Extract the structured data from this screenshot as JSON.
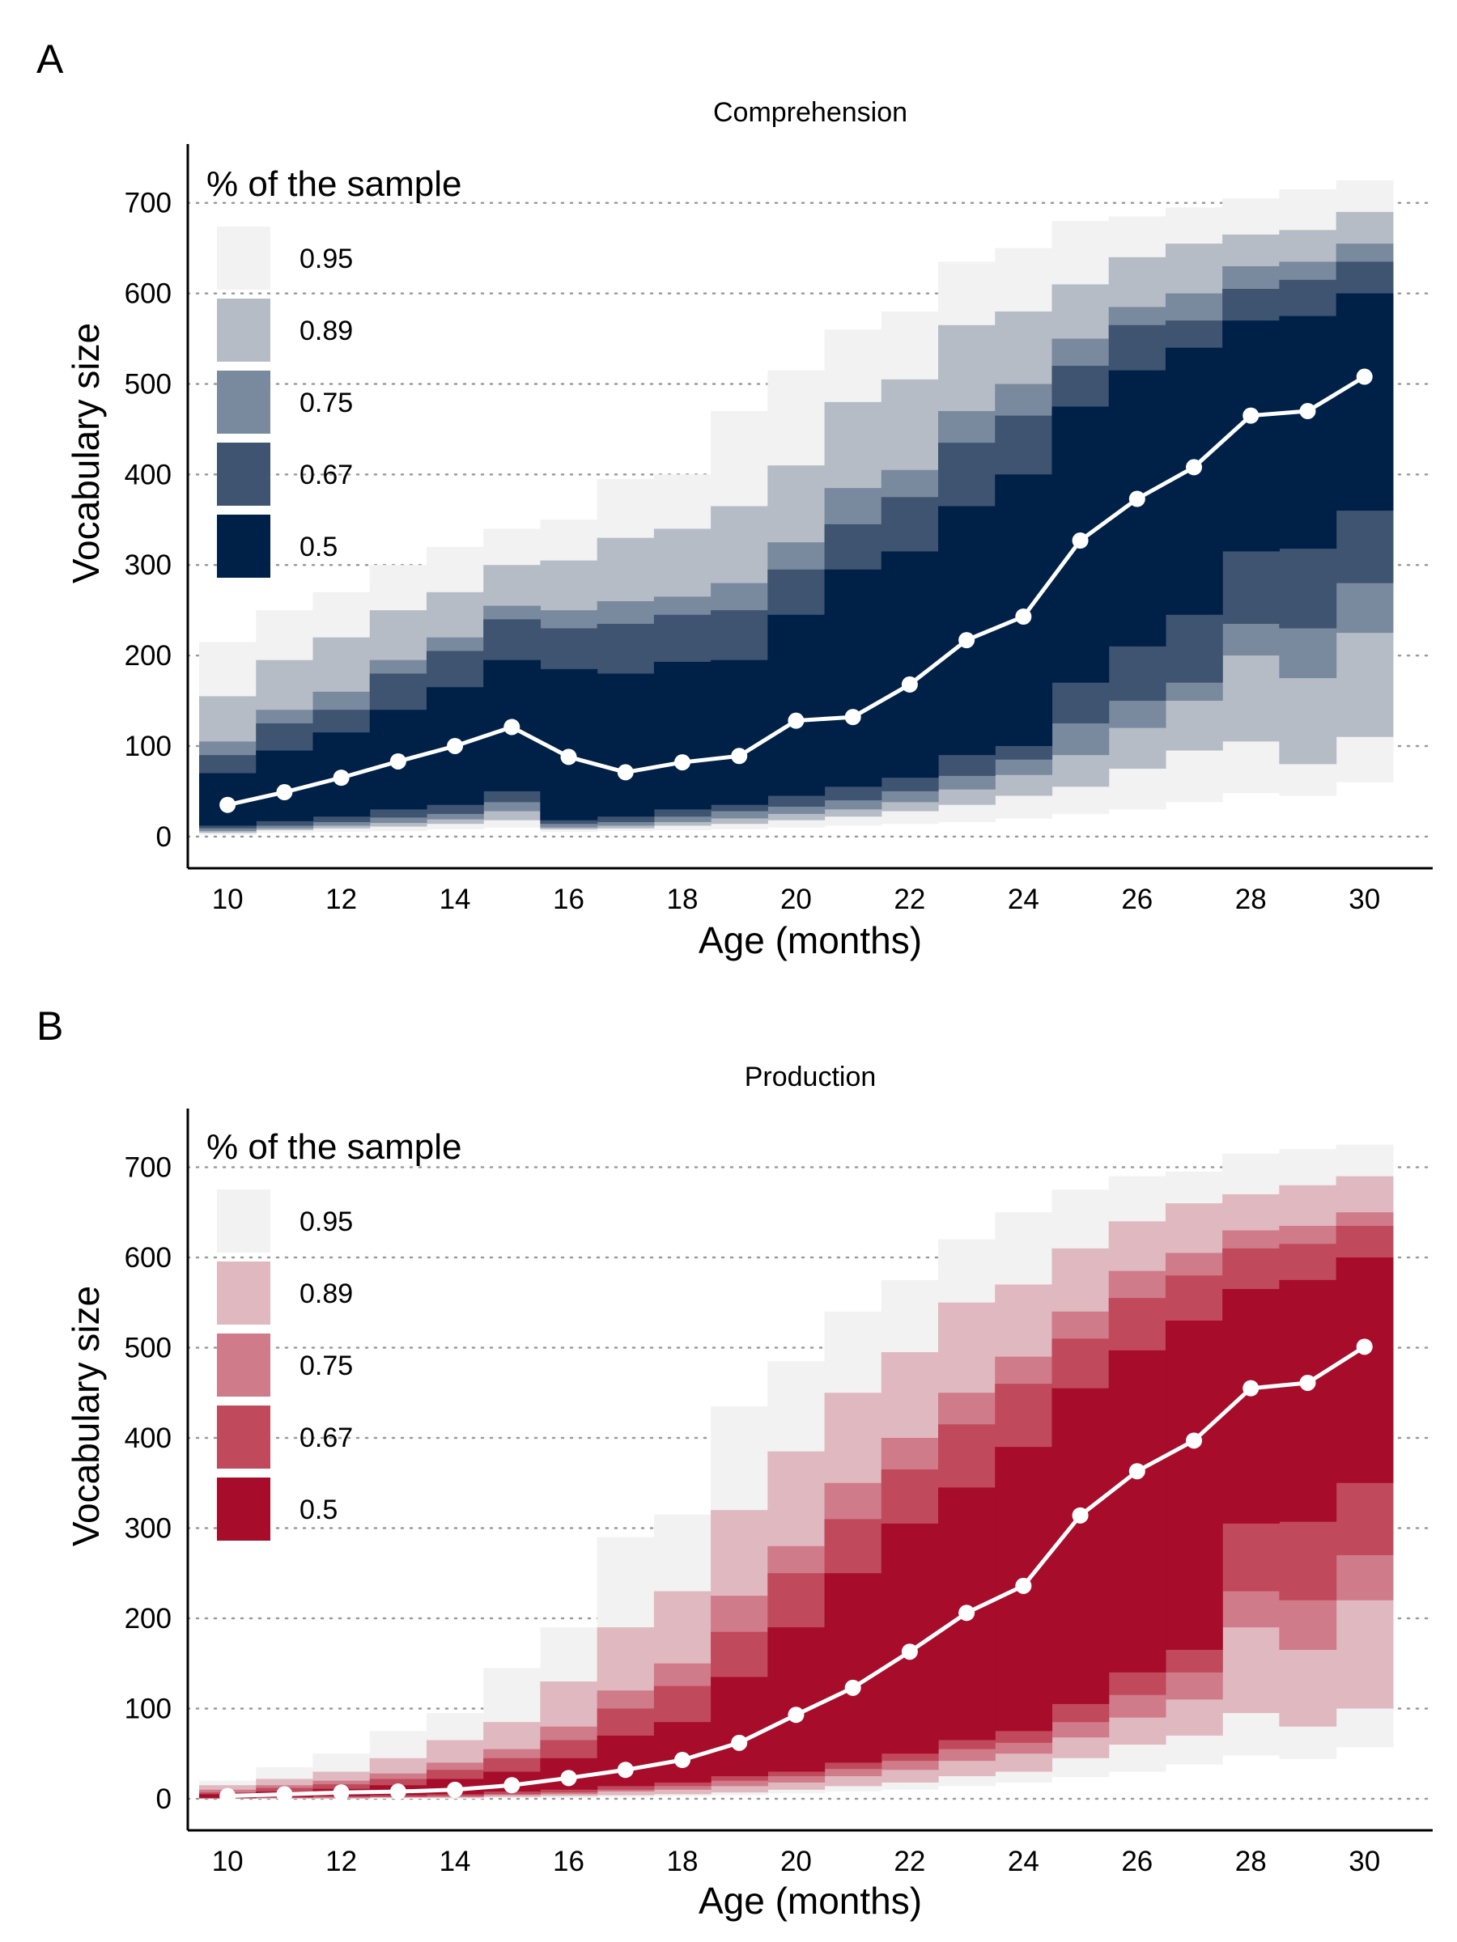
{
  "figure": {
    "panels": [
      "A",
      "B"
    ]
  },
  "chart_data": [
    {
      "panel": "A",
      "type": "area",
      "title": "Comprehension",
      "xlabel": "Age (months)",
      "ylabel": "Vocabulary size",
      "xlim": [
        9.3,
        31.2
      ],
      "ylim": [
        -35,
        765
      ],
      "x_ticks": [
        10,
        12,
        14,
        16,
        18,
        20,
        22,
        24,
        26,
        28,
        30
      ],
      "y_ticks": [
        0,
        100,
        200,
        300,
        400,
        500,
        600,
        700
      ],
      "grid": "horizontal dotted",
      "legend": {
        "title": "% of the sample",
        "position": "top-left",
        "entries": [
          {
            "label": "0.95",
            "color": "#f2f2f2"
          },
          {
            "label": "0.89",
            "color": "#b6bcc6"
          },
          {
            "label": "0.75",
            "color": "#7a8a9e"
          },
          {
            "label": "0.67",
            "color": "#3e5470"
          },
          {
            "label": "0.5",
            "color": "#002147"
          }
        ]
      },
      "x": [
        10,
        11,
        12,
        13,
        14,
        15,
        16,
        17,
        18,
        19,
        20,
        21,
        22,
        23,
        24,
        25,
        26,
        27,
        28,
        29,
        30
      ],
      "median": [
        35,
        49,
        65,
        83,
        100,
        121,
        88,
        71,
        82,
        89,
        128,
        132,
        168,
        217,
        243,
        327,
        373,
        408,
        465,
        470,
        508
      ],
      "intervals": [
        {
          "level": "0.95",
          "lower": [
            2,
            4,
            5,
            6,
            8,
            10,
            5,
            6,
            7,
            8,
            10,
            12,
            14,
            16,
            20,
            25,
            30,
            38,
            48,
            45,
            60
          ],
          "upper": [
            215,
            250,
            270,
            300,
            320,
            340,
            350,
            395,
            400,
            470,
            515,
            560,
            580,
            635,
            650,
            680,
            685,
            695,
            705,
            715,
            725
          ]
        },
        {
          "level": "0.89",
          "lower": [
            4,
            7,
            9,
            11,
            14,
            18,
            8,
            9,
            12,
            14,
            18,
            22,
            28,
            35,
            45,
            55,
            75,
            95,
            105,
            80,
            110
          ]
        },
        {
          "level": "0.89",
          "upper": [
            155,
            195,
            220,
            250,
            270,
            300,
            305,
            330,
            340,
            365,
            410,
            480,
            505,
            565,
            580,
            610,
            640,
            655,
            665,
            670,
            690
          ]
        },
        {
          "level": "0.75",
          "lower": [
            6,
            9,
            12,
            15,
            19,
            28,
            10,
            12,
            16,
            20,
            25,
            30,
            38,
            52,
            68,
            90,
            120,
            150,
            200,
            175,
            225
          ]
        },
        {
          "level": "0.75",
          "upper": [
            105,
            140,
            160,
            195,
            220,
            255,
            250,
            260,
            265,
            280,
            325,
            385,
            405,
            470,
            500,
            550,
            585,
            600,
            630,
            635,
            655
          ]
        },
        {
          "level": "0.67",
          "lower": [
            9,
            12,
            16,
            21,
            25,
            38,
            14,
            16,
            22,
            28,
            33,
            40,
            50,
            67,
            85,
            125,
            150,
            170,
            235,
            230,
            280
          ]
        },
        {
          "level": "0.67",
          "upper": [
            90,
            125,
            140,
            180,
            205,
            240,
            230,
            235,
            245,
            250,
            295,
            345,
            375,
            435,
            465,
            520,
            565,
            570,
            605,
            615,
            635
          ]
        },
        {
          "level": "0.5",
          "lower": [
            12,
            17,
            22,
            30,
            35,
            50,
            18,
            22,
            30,
            35,
            45,
            55,
            65,
            90,
            100,
            170,
            210,
            245,
            315,
            318,
            360
          ],
          "upper": [
            70,
            95,
            115,
            140,
            165,
            195,
            185,
            180,
            193,
            195,
            245,
            295,
            315,
            365,
            400,
            475,
            515,
            540,
            570,
            575,
            600
          ]
        }
      ]
    },
    {
      "panel": "B",
      "type": "area",
      "title": "Production",
      "xlabel": "Age (months)",
      "ylabel": "Vocabulary size",
      "xlim": [
        9.3,
        31.2
      ],
      "ylim": [
        -35,
        765
      ],
      "x_ticks": [
        10,
        12,
        14,
        16,
        18,
        20,
        22,
        24,
        26,
        28,
        30
      ],
      "y_ticks": [
        0,
        100,
        200,
        300,
        400,
        500,
        600,
        700
      ],
      "grid": "horizontal dotted",
      "legend": {
        "title": "% of the sample",
        "position": "top-left",
        "entries": [
          {
            "label": "0.95",
            "color": "#f2f2f2"
          },
          {
            "label": "0.89",
            "color": "#e0b8c0"
          },
          {
            "label": "0.75",
            "color": "#d07b8a"
          },
          {
            "label": "0.67",
            "color": "#c04a5c"
          },
          {
            "label": "0.5",
            "color": "#a70d2a"
          }
        ]
      },
      "x": [
        10,
        11,
        12,
        13,
        14,
        15,
        16,
        17,
        18,
        19,
        20,
        21,
        22,
        23,
        24,
        25,
        26,
        27,
        28,
        29,
        30
      ],
      "median": [
        3,
        5,
        7,
        8,
        10,
        15,
        23,
        32,
        43,
        62,
        93,
        123,
        163,
        206,
        236,
        314,
        363,
        397,
        455,
        461,
        501
      ],
      "intervals": [
        {
          "level": "0.95",
          "lower": [
            0,
            0,
            0,
            0,
            0,
            1,
            1,
            2,
            3,
            4,
            6,
            8,
            10,
            14,
            18,
            24,
            30,
            38,
            48,
            44,
            57
          ],
          "upper": [
            20,
            35,
            50,
            75,
            95,
            145,
            190,
            290,
            315,
            435,
            485,
            540,
            575,
            620,
            650,
            675,
            690,
            695,
            715,
            720,
            725
          ]
        },
        {
          "level": "0.89",
          "lower": [
            0,
            0,
            0,
            1,
            1,
            2,
            3,
            4,
            5,
            7,
            10,
            14,
            18,
            25,
            30,
            45,
            60,
            70,
            95,
            80,
            100
          ]
        },
        {
          "level": "0.89",
          "upper": [
            15,
            22,
            30,
            45,
            65,
            85,
            130,
            190,
            230,
            320,
            385,
            450,
            495,
            550,
            570,
            610,
            640,
            660,
            670,
            680,
            690
          ]
        },
        {
          "level": "0.75",
          "lower": [
            0,
            1,
            1,
            2,
            2,
            4,
            5,
            8,
            10,
            14,
            18,
            25,
            32,
            42,
            50,
            68,
            90,
            110,
            190,
            165,
            220
          ]
        },
        {
          "level": "0.75",
          "upper": [
            10,
            15,
            20,
            28,
            40,
            55,
            80,
            120,
            150,
            225,
            280,
            350,
            400,
            450,
            490,
            540,
            585,
            605,
            630,
            635,
            650
          ]
        },
        {
          "level": "0.67",
          "lower": [
            1,
            1,
            2,
            2,
            3,
            5,
            7,
            10,
            14,
            20,
            25,
            33,
            42,
            55,
            62,
            85,
            115,
            140,
            230,
            220,
            270
          ]
        },
        {
          "level": "0.67",
          "upper": [
            7,
            12,
            16,
            22,
            32,
            45,
            65,
            100,
            125,
            185,
            250,
            310,
            365,
            415,
            460,
            510,
            555,
            580,
            610,
            615,
            635
          ]
        },
        {
          "level": "0.5",
          "lower": [
            1,
            2,
            3,
            4,
            5,
            8,
            10,
            14,
            18,
            25,
            30,
            40,
            50,
            65,
            75,
            105,
            140,
            165,
            305,
            307,
            350
          ],
          "upper": [
            5,
            8,
            11,
            15,
            22,
            30,
            45,
            70,
            85,
            135,
            190,
            250,
            305,
            345,
            390,
            455,
            497,
            530,
            565,
            575,
            600
          ]
        }
      ]
    }
  ]
}
